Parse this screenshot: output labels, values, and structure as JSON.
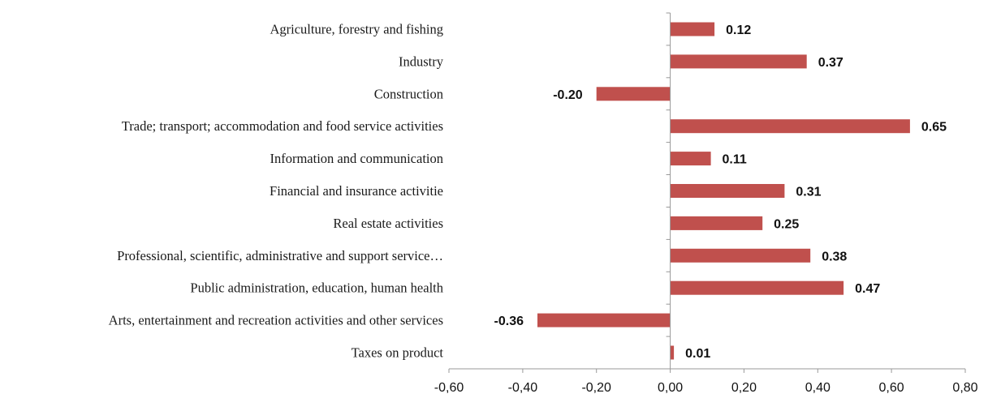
{
  "chart_data": {
    "type": "bar",
    "orientation": "horizontal",
    "categories": [
      "Agriculture, forestry and fishing",
      "Industry",
      "Construction",
      "Trade; transport; accommodation and food service activities",
      "Information and communication",
      "Financial and insurance activitie",
      "Real estate activities",
      "Professional, scientific, administrative and support service…",
      "Public administration, education, human health",
      "Arts, entertainment and recreation activities and other services",
      "Taxes on product"
    ],
    "values": [
      0.12,
      0.37,
      -0.2,
      0.65,
      0.11,
      0.31,
      0.25,
      0.38,
      0.47,
      -0.36,
      0.01
    ],
    "value_labels": [
      "0.12",
      "0.37",
      "-0.20",
      "0.65",
      "0.11",
      "0.31",
      "0.25",
      "0.38",
      "0.47",
      "-0.36",
      "0.01"
    ],
    "xlim": [
      -0.6,
      0.8
    ],
    "x_ticks": [
      -0.6,
      -0.4,
      -0.2,
      0.0,
      0.2,
      0.4,
      0.6,
      0.8
    ],
    "x_tick_labels": [
      "-0,60",
      "-0,40",
      "-0,20",
      "0,00",
      "0,20",
      "0,40",
      "0,60",
      "0,80"
    ],
    "title": "",
    "xlabel": "",
    "ylabel": "",
    "grid": false,
    "legend": "none",
    "colors": {
      "bar": "#c0504d",
      "axis": "#999999",
      "text": "#111111"
    }
  }
}
